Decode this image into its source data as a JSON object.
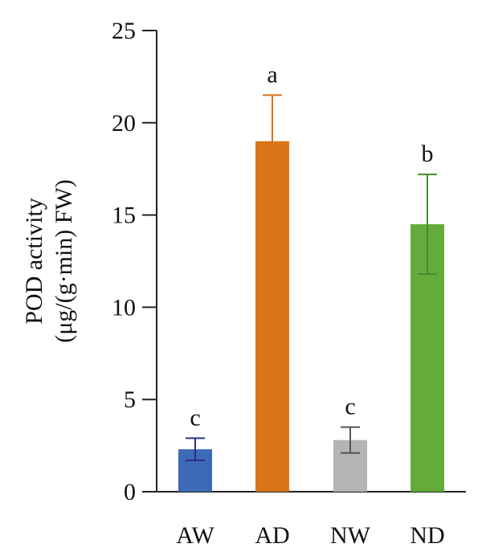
{
  "chart_data": {
    "type": "bar",
    "categories": [
      "AW",
      "AD",
      "NW",
      "ND"
    ],
    "values": [
      2.3,
      19.0,
      2.8,
      14.5
    ],
    "errors": [
      0.6,
      2.5,
      0.7,
      2.7
    ],
    "significance": [
      "c",
      "a",
      "c",
      "b"
    ],
    "colors": [
      "#3d6ab4",
      "#d97418",
      "#b3b4b4",
      "#65ab3c"
    ],
    "error_colors": [
      "#2b2f80",
      "#d97418",
      "#555555",
      "#3f8f2e"
    ],
    "ylabel_lines": [
      "POD activity",
      "(μg/(g·min) FW)"
    ],
    "xlabel": "",
    "ylim": [
      0,
      25
    ],
    "yticks": [
      "0",
      "5",
      "10",
      "15",
      "20",
      "25"
    ],
    "ytick_values": [
      0,
      5,
      10,
      15,
      20,
      25
    ],
    "grid": false,
    "legend": "none"
  }
}
